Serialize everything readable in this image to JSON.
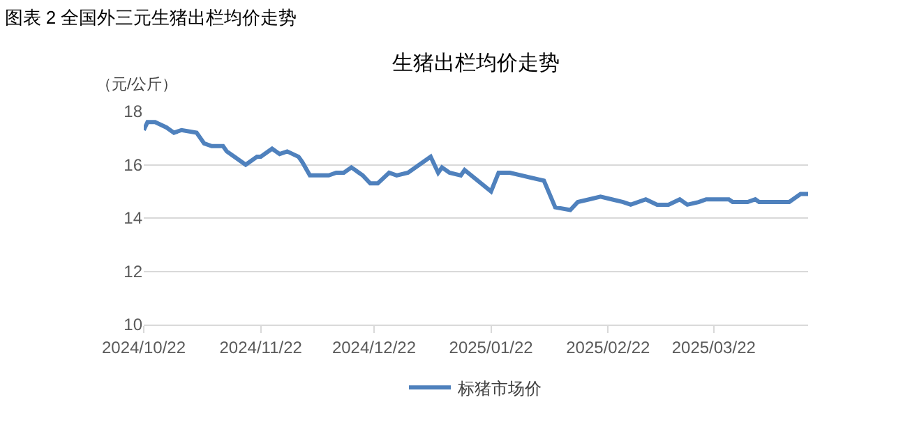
{
  "chart_data": {
    "type": "line",
    "title": "图表 2 全国外三元生猪出栏均价走势",
    "subtitle": "生猪出栏均价走势",
    "ylabel": "（元/公斤）",
    "x": [
      "2024-10-22",
      "2024-10-23",
      "2024-10-25",
      "2024-10-28",
      "2024-10-30",
      "2024-11-01",
      "2024-11-05",
      "2024-11-07",
      "2024-11-09",
      "2024-11-12",
      "2024-11-13",
      "2024-11-15",
      "2024-11-18",
      "2024-11-21",
      "2024-11-22",
      "2024-11-25",
      "2024-11-27",
      "2024-11-29",
      "2024-12-02",
      "2024-12-03",
      "2024-12-05",
      "2024-12-10",
      "2024-12-12",
      "2024-12-14",
      "2024-12-16",
      "2024-12-18",
      "2024-12-19",
      "2024-12-21",
      "2024-12-23",
      "2024-12-26",
      "2024-12-28",
      "2024-12-31",
      "2025-01-03",
      "2025-01-06",
      "2025-01-08",
      "2025-01-09",
      "2025-01-11",
      "2025-01-14",
      "2025-01-15",
      "2025-01-22",
      "2025-01-24",
      "2025-01-27",
      "2025-02-05",
      "2025-02-08",
      "2025-02-12",
      "2025-02-14",
      "2025-02-17",
      "2025-02-20",
      "2025-02-23",
      "2025-02-26",
      "2025-02-28",
      "2025-03-04",
      "2025-03-07",
      "2025-03-10",
      "2025-03-13",
      "2025-03-15",
      "2025-03-18",
      "2025-03-20",
      "2025-03-23",
      "2025-03-26",
      "2025-03-27",
      "2025-03-31",
      "2025-04-02",
      "2025-04-03",
      "2025-04-07",
      "2025-04-11",
      "2025-04-14",
      "2025-04-16"
    ],
    "series": [
      {
        "name": "标猪市场价",
        "color": "#4f81bd",
        "values": [
          17.3,
          17.6,
          17.6,
          17.4,
          17.2,
          17.3,
          17.2,
          16.8,
          16.7,
          16.7,
          16.5,
          16.3,
          16.0,
          16.3,
          16.3,
          16.6,
          16.4,
          16.5,
          16.3,
          16.1,
          15.6,
          15.6,
          15.7,
          15.7,
          15.9,
          15.7,
          15.6,
          15.3,
          15.3,
          15.7,
          15.6,
          15.7,
          16.0,
          16.3,
          15.7,
          15.9,
          15.7,
          15.6,
          15.8,
          15.0,
          15.7,
          15.7,
          15.4,
          14.4,
          14.3,
          14.6,
          14.7,
          14.8,
          14.7,
          14.6,
          14.5,
          14.7,
          14.5,
          14.5,
          14.7,
          14.5,
          14.6,
          14.7,
          14.7,
          14.7,
          14.6,
          14.6,
          14.7,
          14.6,
          14.6,
          14.6,
          14.9,
          14.9
        ]
      }
    ],
    "xlim": [
      "2024-10-22",
      "2025-04-16"
    ],
    "xticks": [
      {
        "value": "2024-10-22",
        "label": "2024/10/22"
      },
      {
        "value": "2024-11-22",
        "label": "2024/11/22"
      },
      {
        "value": "2024-12-22",
        "label": "2024/12/22"
      },
      {
        "value": "2025-01-22",
        "label": "2025/01/22"
      },
      {
        "value": "2025-02-22",
        "label": "2025/02/22"
      },
      {
        "value": "2025-03-22",
        "label": "2025/03/22"
      }
    ],
    "ylim": [
      10,
      18
    ],
    "yticks": [
      10,
      12,
      14,
      16,
      18
    ],
    "grid": "y",
    "legend": "bottom",
    "marker": "none",
    "line_style": "solid"
  }
}
